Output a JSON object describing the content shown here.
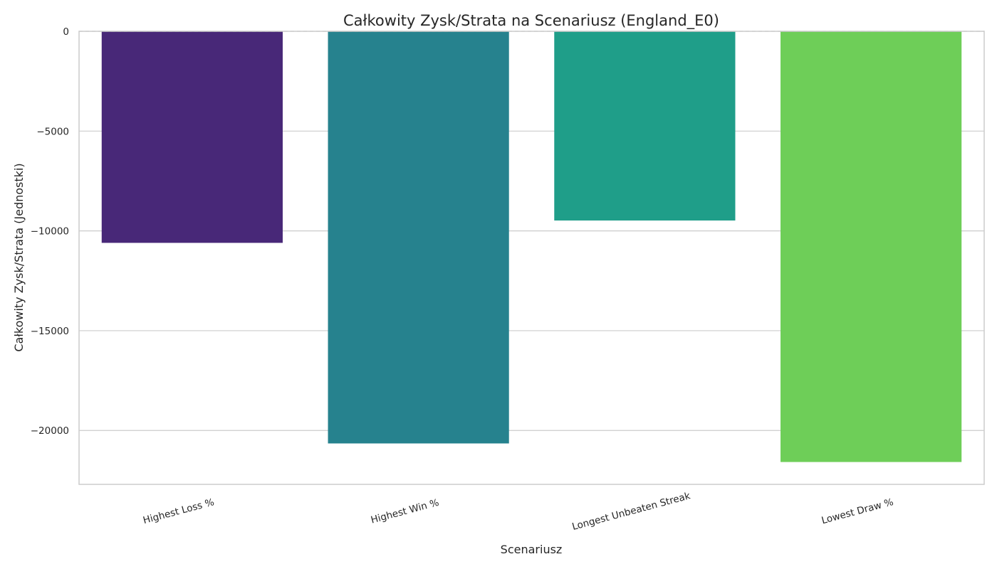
{
  "chart_data": {
    "type": "bar",
    "title": "Całkowity Zysk/Strata na Scenariusz (England_E0)",
    "xlabel": "Scenariusz",
    "ylabel": "Całkowity Zysk/Strata (Jednostki)",
    "categories": [
      "Highest Loss %",
      "Highest Win %",
      "Longest Unbeaten Streak",
      "Lowest Draw %"
    ],
    "values": [
      -10600,
      -20650,
      -9480,
      -21580
    ],
    "colors": [
      "#482878",
      "#26828e",
      "#1f9e89",
      "#6ece58"
    ],
    "ylim": [
      -22700,
      0
    ],
    "yticks": [
      0,
      -5000,
      -10000,
      -15000,
      -20000
    ],
    "ytick_labels": [
      "0",
      "−5000",
      "−10000",
      "−15000",
      "−20000"
    ],
    "grid": "horizontal",
    "zero_line": "dashed",
    "legend": "none"
  }
}
